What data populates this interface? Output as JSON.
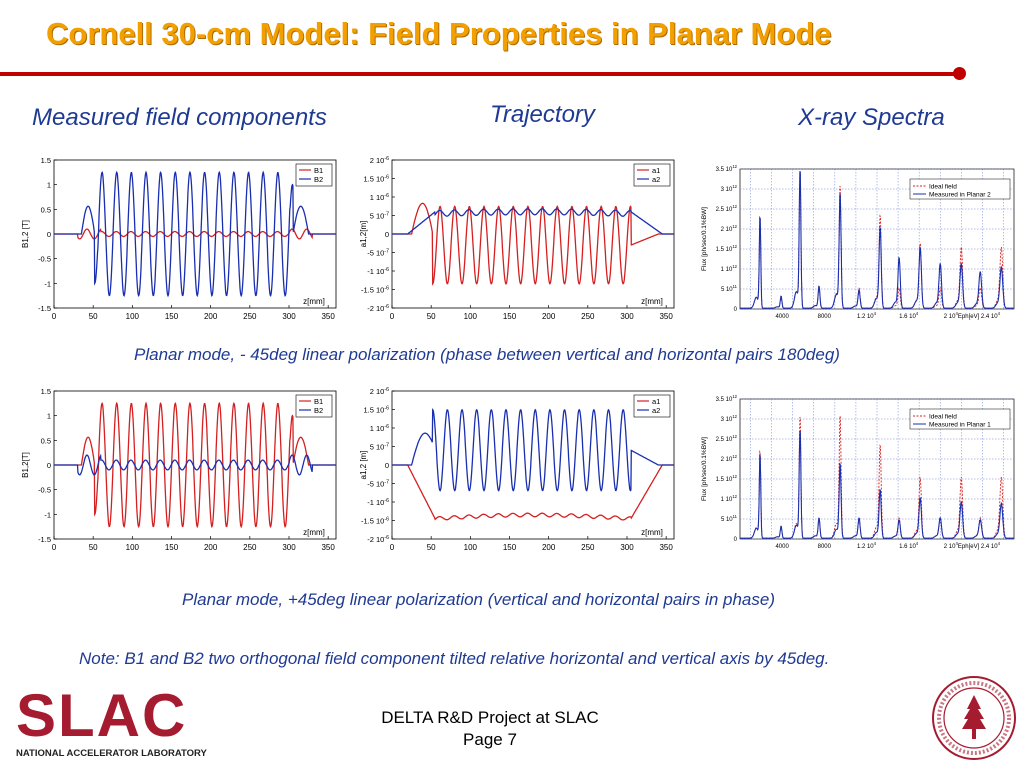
{
  "title": "Cornell 30-cm Model: Field Properties in Planar Mode",
  "headers": {
    "field": "Measured field components",
    "trajectory": "Trajectory",
    "xray": "X-ray Spectra"
  },
  "captions": {
    "row1": "Planar mode, - 45deg linear polarization (phase between vertical and horizontal pairs 180deg)",
    "row2": "Planar mode, +45deg linear polarization (vertical and horizontal pairs in phase)",
    "note": "Note: B1 and B2 two orthogonal field component tilted relative horizontal and vertical axis by 45deg."
  },
  "footer": {
    "line1": "DELTA R&D Project at SLAC",
    "line2": "Page 7"
  },
  "logo": {
    "word": "SLAC",
    "sub": "NATIONAL ACCELERATOR LABORATORY"
  },
  "colors": {
    "title": "#f2a000",
    "accent_red": "#c00000",
    "caption_blue": "#1f3a93",
    "series_red": "#d42020",
    "series_blue": "#1a2fb0"
  },
  "chart_data": [
    {
      "id": "field_m45",
      "type": "line",
      "xlabel": "z[mm]",
      "ylabel": "B1,2 [T]",
      "xlim": [
        0,
        360
      ],
      "ylim": [
        -1.5,
        1.5
      ],
      "xticks": [
        "0",
        "50",
        "100",
        "150",
        "200",
        "250",
        "300",
        "350"
      ],
      "yticks": [
        "1.5",
        "1",
        "0.5",
        "0",
        "-0.5",
        "-1",
        "-1.5"
      ],
      "legend": [
        "B1",
        "B2"
      ],
      "series": [
        {
          "name": "B1",
          "color": "#d42020",
          "shape": "small",
          "amp": 0.05
        },
        {
          "name": "B2",
          "color": "#1a2fb0",
          "shape": "und",
          "amp": 1.25,
          "phase": 0
        }
      ]
    },
    {
      "id": "traj_m45",
      "type": "line",
      "xlabel": "z[mm]",
      "ylabel": "a1,2[m]",
      "xlim": [
        0,
        360
      ],
      "ylim": [
        -2e-06,
        2e-06
      ],
      "xticks": [
        "0",
        "50",
        "100",
        "150",
        "200",
        "250",
        "300",
        "350"
      ],
      "yticks": [
        "2 10",
        "1.5 10",
        "1 10",
        "5 10",
        "0",
        "-5 10",
        "-1 10",
        "-1.5 10",
        "-2 10"
      ],
      "yexp": [
        "-6",
        "-6",
        "-6",
        "-7",
        "",
        "-7",
        "-6",
        "-6",
        "-6"
      ],
      "legend": [
        "a1",
        "a2"
      ],
      "series": [
        {
          "name": "a1",
          "color": "#d42020",
          "shape": "traj_osc",
          "amp": 1.1e-06,
          "offset": -3e-07
        },
        {
          "name": "a2",
          "color": "#1a2fb0",
          "shape": "traj_drift",
          "level": 6e-07
        }
      ]
    },
    {
      "id": "xray_planar2",
      "type": "line",
      "xlabel": "Eph[eV]",
      "ylabel": "Flux [ph/sec/0.1%BW]",
      "xlim": [
        0,
        26000
      ],
      "ylim": [
        0,
        3500000000000.0
      ],
      "xticks": [
        "4000",
        "8000",
        "1.2 10",
        "1.6 10",
        "2 10",
        "Eph[eV] 2.4 10"
      ],
      "xexp": [
        "",
        "",
        "4",
        "4",
        "4",
        "4"
      ],
      "yticks": [
        "3.5 10",
        "3 10",
        "2.5 10",
        "2 10",
        "1.5 10",
        "1 10",
        "5 10",
        "0"
      ],
      "yexp": [
        "12",
        "12",
        "12",
        "12",
        "12",
        "12",
        "11",
        ""
      ],
      "legend": [
        "Ideal field",
        "Measured in Planar 2"
      ],
      "series": [
        {
          "name": "Ideal field",
          "color": "#d42020",
          "dashed": true,
          "peaks": [
            [
              1900,
              2300000000000.0
            ],
            [
              3900,
              300000000000.0
            ],
            [
              5700,
              3400000000000.0
            ],
            [
              7500,
              500000000000.0
            ],
            [
              9500,
              3050000000000.0
            ],
            [
              11300,
              500000000000.0
            ],
            [
              13300,
              2300000000000.0
            ],
            [
              15100,
              500000000000.0
            ],
            [
              17100,
              1600000000000.0
            ],
            [
              19000,
              500000000000.0
            ],
            [
              21000,
              1500000000000.0
            ],
            [
              22800,
              500000000000.0
            ],
            [
              24800,
              1500000000000.0
            ]
          ]
        },
        {
          "name": "Measured in Planar 2",
          "color": "#1a2fb0",
          "dashed": false,
          "peaks": [
            [
              1900,
              2300000000000.0
            ],
            [
              3900,
              300000000000.0
            ],
            [
              5700,
              3450000000000.0
            ],
            [
              7500,
              550000000000.0
            ],
            [
              9500,
              2850000000000.0
            ],
            [
              11300,
              450000000000.0
            ],
            [
              13300,
              2000000000000.0
            ],
            [
              15100,
              1250000000000.0
            ],
            [
              17100,
              1500000000000.0
            ],
            [
              19000,
              1100000000000.0
            ],
            [
              21000,
              1100000000000.0
            ],
            [
              22800,
              900000000000.0
            ],
            [
              24800,
              1000000000000.0
            ]
          ]
        }
      ]
    },
    {
      "id": "field_p45",
      "type": "line",
      "xlabel": "z[mm]",
      "ylabel": "B1,2[T]",
      "xlim": [
        0,
        360
      ],
      "ylim": [
        -1.5,
        1.5
      ],
      "xticks": [
        "0",
        "50",
        "100",
        "150",
        "200",
        "250",
        "300",
        "350"
      ],
      "yticks": [
        "1.5",
        "1",
        "0.5",
        "0",
        "-0.5",
        "-1",
        "-1.5"
      ],
      "legend": [
        "B1",
        "B2"
      ],
      "series": [
        {
          "name": "B1",
          "color": "#d42020",
          "shape": "und",
          "amp": 1.25,
          "phase": 0
        },
        {
          "name": "B2",
          "color": "#1a2fb0",
          "shape": "small",
          "amp": 0.1
        }
      ]
    },
    {
      "id": "traj_p45",
      "type": "line",
      "xlabel": "z[mm]",
      "ylabel": "a1,2 [m]",
      "xlim": [
        0,
        360
      ],
      "ylim": [
        -2e-06,
        2e-06
      ],
      "xticks": [
        "0",
        "50",
        "100",
        "150",
        "200",
        "250",
        "300",
        "350"
      ],
      "yticks": [
        "2 10",
        "1.5 10",
        "1 10",
        "5 10",
        "0",
        "-5 10",
        "-1 10",
        "-1.5 10",
        "-2 10"
      ],
      "yexp": [
        "-6",
        "-6",
        "-6",
        "-7",
        "",
        "-7",
        "-6",
        "-6",
        "-6"
      ],
      "legend": [
        "a1",
        "a2"
      ],
      "series": [
        {
          "name": "a1",
          "color": "#d42020",
          "shape": "traj_drift",
          "level": -1.45e-06
        },
        {
          "name": "a2",
          "color": "#1a2fb0",
          "shape": "traj_osc",
          "amp": 1.15e-06,
          "offset": 4e-07
        }
      ]
    },
    {
      "id": "xray_planar1",
      "type": "line",
      "xlabel": "Eph[eV]",
      "ylabel": "Flux [ph/sec/0.1%BW]",
      "xlim": [
        0,
        26000
      ],
      "ylim": [
        0,
        3500000000000.0
      ],
      "xticks": [
        "4000",
        "8000",
        "1.2 10",
        "1.6 10",
        "2 10",
        "Eph[eV] 2.4 10"
      ],
      "xexp": [
        "",
        "",
        "4",
        "4",
        "4",
        "4"
      ],
      "yticks": [
        "3.5 10",
        "3 10",
        "2.5 10",
        "2 10",
        "1.5 10",
        "1 10",
        "5 10",
        "0"
      ],
      "yexp": [
        "12",
        "12",
        "12",
        "12",
        "12",
        "12",
        "11",
        ""
      ],
      "legend": [
        "Ideal field",
        "Measured in Planar 1"
      ],
      "series": [
        {
          "name": "Ideal field",
          "color": "#d42020",
          "dashed": true,
          "peaks": [
            [
              1900,
              2200000000000.0
            ],
            [
              3900,
              300000000000.0
            ],
            [
              5700,
              3050000000000.0
            ],
            [
              7500,
              500000000000.0
            ],
            [
              9500,
              3050000000000.0
            ],
            [
              11300,
              500000000000.0
            ],
            [
              13300,
              2300000000000.0
            ],
            [
              15100,
              500000000000.0
            ],
            [
              17100,
              1500000000000.0
            ],
            [
              19000,
              500000000000.0
            ],
            [
              21000,
              1500000000000.0
            ],
            [
              22800,
              500000000000.0
            ],
            [
              24800,
              1500000000000.0
            ]
          ]
        },
        {
          "name": "Measured in Planar 1",
          "color": "#1a2fb0",
          "dashed": false,
          "peaks": [
            [
              1900,
              2100000000000.0
            ],
            [
              3900,
              300000000000.0
            ],
            [
              5700,
              2700000000000.0
            ],
            [
              7500,
              500000000000.0
            ],
            [
              9500,
              1850000000000.0
            ],
            [
              11300,
              500000000000.0
            ],
            [
              13300,
              1200000000000.0
            ],
            [
              15100,
              450000000000.0
            ],
            [
              17100,
              1000000000000.0
            ],
            [
              19000,
              500000000000.0
            ],
            [
              21000,
              900000000000.0
            ],
            [
              22800,
              450000000000.0
            ],
            [
              24800,
              850000000000.0
            ]
          ]
        }
      ]
    }
  ]
}
